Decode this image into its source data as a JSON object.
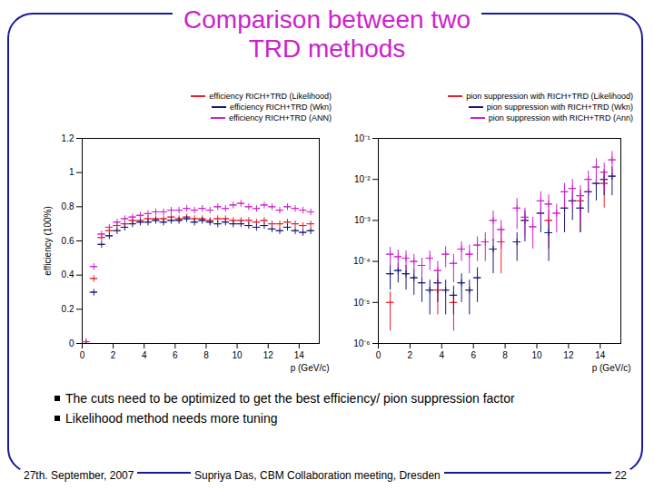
{
  "title": "Comparison between two TRD methods",
  "bullets": [
    "The cuts need to be optimized to get the best efficiency/ pion suppression factor",
    "Likelihood method needs more tuning"
  ],
  "footer": {
    "date": "27th. September, 2007",
    "event": "Supriya Das, CBM Collaboration meeting, Dresden",
    "page": "22"
  },
  "chart_data": [
    {
      "type": "scatter",
      "xlabel": "p (GeV/c)",
      "ylabel": "efficiency (100%)",
      "xlim": [
        0,
        15.3
      ],
      "xticks": [
        0,
        2,
        4,
        6,
        8,
        10,
        12,
        14
      ],
      "ylim": [
        0,
        1.2
      ],
      "yticks": [
        0,
        0.2,
        0.4,
        0.6,
        0.8,
        1,
        1.2
      ],
      "grid": false,
      "legend": "top right",
      "marker": "plus",
      "x": [
        0.25,
        0.75,
        1.25,
        1.75,
        2.25,
        2.75,
        3.25,
        3.75,
        4.25,
        4.75,
        5.25,
        5.75,
        6.25,
        6.75,
        7.25,
        7.75,
        8.25,
        8.75,
        9.25,
        9.75,
        10.25,
        10.75,
        11.25,
        11.75,
        12.25,
        12.75,
        13.25,
        13.75,
        14.25,
        14.75
      ],
      "series": [
        {
          "name": "efficiency RICH+TRD (Likelihood)",
          "color": "#e8202a",
          "values": [
            0.0,
            0.38,
            0.62,
            0.66,
            0.69,
            0.7,
            0.72,
            0.72,
            0.73,
            0.73,
            0.73,
            0.74,
            0.73,
            0.74,
            0.73,
            0.73,
            0.72,
            0.73,
            0.73,
            0.72,
            0.72,
            0.72,
            0.71,
            0.72,
            0.7,
            0.7,
            0.71,
            0.7,
            0.69,
            0.7
          ]
        },
        {
          "name": "efficiency RICH+TRD (Wkn)",
          "color": "#1a1a7a",
          "values": [
            0.0,
            0.3,
            0.58,
            0.63,
            0.66,
            0.68,
            0.7,
            0.71,
            0.71,
            0.72,
            0.71,
            0.72,
            0.72,
            0.73,
            0.71,
            0.72,
            0.71,
            0.7,
            0.71,
            0.7,
            0.7,
            0.69,
            0.68,
            0.69,
            0.67,
            0.66,
            0.68,
            0.66,
            0.65,
            0.66
          ]
        },
        {
          "name": "efficiency RICH+TRD (ANN)",
          "color": "#cc22cc",
          "values": [
            0.01,
            0.45,
            0.64,
            0.68,
            0.71,
            0.73,
            0.74,
            0.75,
            0.76,
            0.77,
            0.77,
            0.78,
            0.78,
            0.79,
            0.78,
            0.79,
            0.78,
            0.8,
            0.79,
            0.81,
            0.82,
            0.8,
            0.79,
            0.81,
            0.8,
            0.78,
            0.8,
            0.79,
            0.78,
            0.77
          ]
        }
      ]
    },
    {
      "type": "scatter",
      "xlabel": "p (GeV/c)",
      "log": "y",
      "xlim": [
        0,
        15.3
      ],
      "xticks": [
        0,
        2,
        4,
        6,
        8,
        10,
        12,
        14
      ],
      "ylim": [
        1e-06,
        0.1
      ],
      "yticks": [
        {
          "value": 1e-06,
          "label": "10⁻⁶"
        },
        {
          "value": 1e-05,
          "label": "10⁻⁵"
        },
        {
          "value": 0.0001,
          "label": "10⁻⁴"
        },
        {
          "value": 0.001,
          "label": "10⁻³"
        },
        {
          "value": 0.01,
          "label": "10⁻²"
        },
        {
          "value": 0.1,
          "label": "10⁻¹"
        }
      ],
      "grid": false,
      "legend": "top right",
      "marker": "plus",
      "x": [
        0.25,
        0.75,
        1.25,
        1.75,
        2.25,
        2.75,
        3.25,
        3.75,
        4.25,
        4.75,
        5.25,
        5.75,
        6.25,
        6.75,
        7.25,
        7.75,
        8.25,
        8.75,
        9.25,
        9.75,
        10.25,
        10.75,
        11.25,
        11.75,
        12.25,
        12.75,
        13.25,
        13.75,
        14.25,
        14.75
      ],
      "series": [
        {
          "name": "pion suppression with RICH+TRD (Likelihood)",
          "color": "#e8202a",
          "values": [
            null,
            1e-05,
            null,
            null,
            null,
            null,
            null,
            2e-05,
            null,
            1e-05,
            null,
            null,
            null,
            null,
            null,
            0.0003,
            null,
            null,
            null,
            null,
            null,
            0.001,
            null,
            null,
            null,
            0.003,
            null,
            null,
            0.008,
            null
          ],
          "errors": [
            null,
            8e-06,
            null,
            null,
            null,
            null,
            null,
            1.5e-05,
            null,
            8e-06,
            null,
            null,
            null,
            null,
            null,
            0.00025,
            null,
            null,
            null,
            null,
            null,
            0.0008,
            null,
            null,
            null,
            0.0025,
            null,
            null,
            0.006,
            null
          ]
        },
        {
          "name": "pion suppression with RICH+TRD (Wkn)",
          "color": "#1a1a7a",
          "values": [
            null,
            5e-05,
            6e-05,
            5e-05,
            4e-05,
            3e-05,
            2e-05,
            3e-05,
            2e-05,
            1.5e-05,
            3e-05,
            2e-05,
            4e-05,
            null,
            0.0002,
            null,
            null,
            0.0003,
            0.001,
            null,
            0.0015,
            0.0005,
            null,
            0.002,
            0.003,
            0.002,
            0.005,
            0.008,
            0.01,
            0.012
          ],
          "errors": [
            null,
            3e-05,
            3e-05,
            3e-05,
            2.5e-05,
            2e-05,
            1.5e-05,
            2e-05,
            1.5e-05,
            1e-05,
            2e-05,
            1.5e-05,
            3e-05,
            null,
            0.00015,
            null,
            null,
            0.0002,
            0.0007,
            null,
            0.001,
            0.0004,
            null,
            0.0015,
            0.002,
            0.0015,
            0.0035,
            0.005,
            0.006,
            0.008
          ]
        },
        {
          "name": "pion suppression with RICH+TRD (Ann)",
          "color": "#cc22cc",
          "values": [
            null,
            0.00015,
            0.00013,
            0.00012,
            0.0001,
            8e-05,
            0.00012,
            6e-05,
            0.00015,
            9e-05,
            0.0002,
            0.00015,
            0.00025,
            0.0003,
            0.001,
            0.0006,
            null,
            0.002,
            0.0012,
            0.0007,
            0.003,
            0.0025,
            0.0015,
            0.005,
            0.006,
            0.004,
            0.01,
            0.02,
            0.015,
            0.03
          ],
          "errors": [
            null,
            7e-05,
            6e-05,
            6e-05,
            5e-05,
            4e-05,
            6e-05,
            4e-05,
            8e-05,
            6e-05,
            0.0001,
            0.0001,
            0.00015,
            0.0002,
            0.0007,
            0.0004,
            null,
            0.0014,
            0.0008,
            0.0005,
            0.002,
            0.0017,
            0.001,
            0.003,
            0.004,
            0.003,
            0.006,
            0.012,
            0.01,
            0.018
          ]
        }
      ]
    }
  ]
}
